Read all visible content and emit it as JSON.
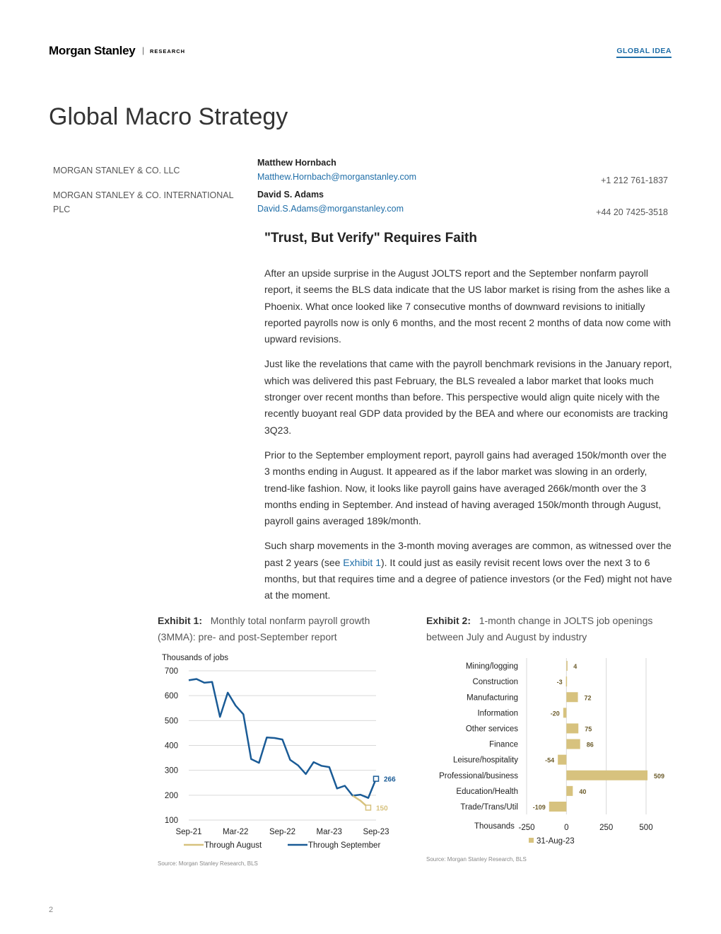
{
  "header": {
    "logo_text": "Morgan Stanley",
    "separator": "|",
    "section_label": "RESEARCH",
    "tag": "GLOBAL IDEA"
  },
  "title": "Global Macro Strategy",
  "entities": [
    "MORGAN STANLEY & CO. LLC",
    "MORGAN STANLEY & CO. INTERNATIONAL PLC"
  ],
  "authors": [
    {
      "name": "Matthew Hornbach",
      "email": "Matthew.Hornbach@morganstanley.com",
      "phone": "+1 212 761-1837"
    },
    {
      "name": "David S. Adams",
      "email": "David.S.Adams@morganstanley.com",
      "phone": "+44 20 7425-3518"
    }
  ],
  "headline": "\"Trust, But Verify\" Requires Faith",
  "paragraphs": [
    "After an upside surprise in the August JOLTS report and the September nonfarm payroll report, it seems the BLS data indicate that the US labor market is rising from the ashes like a Phoenix. What once looked like 7 consecutive months of downward revisions to initially reported payrolls now is only 6 months, and the most recent 2 months of data now come with upward revisions.",
    "Just like the revelations that came with the payroll benchmark revisions in the January report, which was delivered this past February, the BLS revealed a labor market that looks much stronger over recent months than before. This perspective would align quite nicely with the recently buoyant real GDP data provided by the BEA and where our economists are tracking 3Q23.",
    "Prior to the September employment report, payroll gains had averaged 150k/month over the 3 months ending in August. It appeared as if the labor market was slowing in an orderly, trend-like fashion. Now, it looks like payroll gains have averaged 266k/month over the 3 months ending in September. And instead of having averaged 150k/month through August, payroll gains averaged 189k/month."
  ],
  "paragraph4": {
    "before": "Such sharp movements in the 3-month moving averages are common, as witnessed over the past 2 years (see ",
    "link": "Exhibit 1",
    "after": "). It could just as easily revisit recent lows over the next 3 to 6 months, but that requires time and a degree of patience investors (or the Fed) might not have at the moment."
  },
  "exhibit1": {
    "label": "Exhibit 1:",
    "caption": "Monthly total nonfarm payroll growth (3MMA): pre- and post-September report",
    "source": "Source: Morgan Stanley Research, BLS"
  },
  "exhibit2": {
    "label": "Exhibit 2:",
    "caption": "1-month change in JOLTS job openings between July and August by industry",
    "source": "Source: Morgan Stanley Research, BLS"
  },
  "page_number": "2",
  "colors": {
    "accent": "#1f6ea8",
    "navy": "#1a5b96",
    "gold": "#d7c27e"
  },
  "chart_data": [
    {
      "type": "line",
      "ylabel": "Thousands of jobs",
      "ylim": [
        100,
        700
      ],
      "yticks": [
        700,
        600,
        500,
        400,
        300,
        200,
        100
      ],
      "xtick_labels": [
        "Sep-21",
        "Mar-22",
        "Sep-22",
        "Mar-23",
        "Sep-23"
      ],
      "x": [
        "Sep-21",
        "Oct-21",
        "Nov-21",
        "Dec-21",
        "Jan-22",
        "Feb-22",
        "Mar-22",
        "Apr-22",
        "May-22",
        "Jun-22",
        "Jul-22",
        "Aug-22",
        "Sep-22",
        "Oct-22",
        "Nov-22",
        "Dec-22",
        "Jan-23",
        "Feb-23",
        "Mar-23",
        "Apr-23",
        "May-23",
        "Jun-23",
        "Jul-23",
        "Aug-23",
        "Sep-23"
      ],
      "series": [
        {
          "name": "Through August",
          "color": "#d7c27e",
          "end_label": "150",
          "values": [
            null,
            null,
            null,
            null,
            null,
            null,
            null,
            null,
            null,
            null,
            null,
            null,
            null,
            null,
            null,
            null,
            null,
            null,
            null,
            null,
            null,
            198,
            178,
            150,
            null
          ]
        },
        {
          "name": "Through September",
          "color": "#1a5b96",
          "end_label": "266",
          "values": [
            662,
            667,
            652,
            655,
            515,
            612,
            560,
            525,
            345,
            330,
            432,
            430,
            424,
            342,
            320,
            285,
            333,
            318,
            313,
            227,
            238,
            198,
            202,
            189,
            266
          ]
        }
      ]
    },
    {
      "type": "bar",
      "orientation": "horizontal",
      "categories": [
        "Mining/logging",
        "Construction",
        "Manufacturing",
        "Information",
        "Other services",
        "Finance",
        "Leisure/hospitality",
        "Professional/business",
        "Education/Health",
        "Trade/Trans/Util"
      ],
      "values": [
        4,
        -3,
        72,
        -20,
        75,
        86,
        -54,
        509,
        40,
        -109
      ],
      "xlabel": "Thousands",
      "xlim": [
        -250,
        500
      ],
      "xticks": [
        -250,
        0,
        250,
        500
      ],
      "series_name": "31-Aug-23",
      "color": "#d7c27e"
    }
  ]
}
